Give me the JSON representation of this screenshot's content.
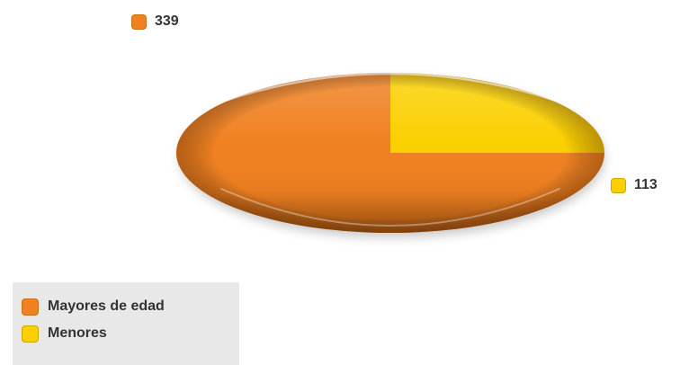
{
  "chart_data": {
    "type": "pie",
    "style": "3d-ellipse",
    "categories": [
      "Mayores de edad",
      "Menores"
    ],
    "values": [
      339,
      113
    ],
    "colors": [
      "#f08020",
      "#fbd000"
    ],
    "data_labels": [
      "339",
      "113"
    ],
    "legend": {
      "placement": "bottom-left",
      "items": [
        {
          "label": "Mayores de edad",
          "color": "#f08020"
        },
        {
          "label": "Menores",
          "color": "#fbd000"
        }
      ]
    }
  }
}
